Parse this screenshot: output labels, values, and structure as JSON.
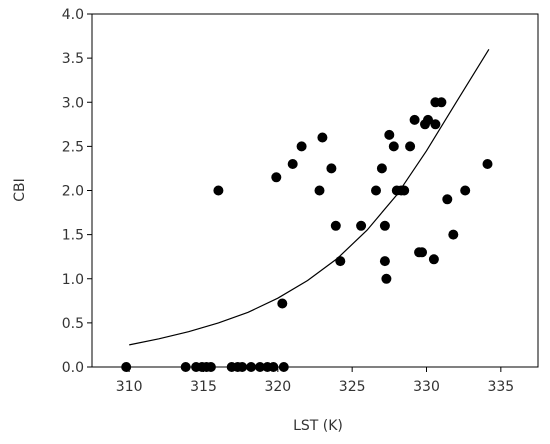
{
  "chart_data": {
    "type": "scatter",
    "xlabel": "LST (K)",
    "ylabel": "CBI",
    "xlim": [
      307.5,
      337.5
    ],
    "ylim": [
      0.0,
      4.0
    ],
    "x_ticks": [
      310,
      315,
      320,
      325,
      330,
      335
    ],
    "x_tick_labels": [
      "310",
      "315",
      "320",
      "325",
      "330",
      "335"
    ],
    "y_ticks": [
      0.0,
      0.5,
      1.0,
      1.5,
      2.0,
      2.5,
      3.0,
      3.5,
      4.0
    ],
    "y_tick_labels": [
      "0.0",
      "0.5",
      "1.0",
      "1.5",
      "2.0",
      "2.5",
      "3.0",
      "3.5",
      "4.0"
    ],
    "grid": false,
    "legend": "none",
    "marker_color": "#000000",
    "curve_color": "#000000",
    "series": [
      {
        "type": "scatter",
        "x": [
          309.8,
          313.8,
          314.5,
          314.9,
          315.2,
          315.5,
          316.9,
          317.3,
          317.6,
          318.2,
          318.8,
          319.3,
          319.7,
          320.4,
          316.0,
          319.9,
          320.3,
          321.0,
          321.6,
          322.8,
          323.0,
          323.6,
          323.9,
          324.2,
          325.6,
          326.6,
          327.0,
          327.2,
          327.2,
          327.3,
          327.5,
          327.8,
          328.0,
          328.3,
          328.5,
          328.9,
          329.2,
          329.5,
          329.7,
          329.9,
          330.1,
          330.5,
          330.6,
          330.6,
          331.0,
          331.4,
          331.8,
          332.6,
          334.1
        ],
        "y": [
          0.0,
          0.0,
          0.0,
          0.0,
          0.0,
          0.0,
          0.0,
          0.0,
          0.0,
          0.0,
          0.0,
          0.0,
          0.0,
          0.0,
          2.0,
          2.15,
          0.72,
          2.3,
          2.5,
          2.0,
          2.6,
          2.25,
          1.6,
          1.2,
          1.6,
          2.0,
          2.25,
          1.6,
          1.2,
          1.0,
          2.63,
          2.5,
          2.0,
          2.0,
          2.0,
          2.5,
          2.8,
          1.3,
          1.3,
          2.75,
          2.8,
          1.22,
          2.75,
          3.0,
          3.0,
          1.9,
          1.5,
          2.0,
          2.3
        ]
      },
      {
        "type": "line",
        "x": [
          310,
          312,
          314,
          316,
          318,
          320,
          322,
          324,
          326,
          328,
          330,
          332,
          334.2
        ],
        "y": [
          0.25,
          0.32,
          0.4,
          0.5,
          0.62,
          0.78,
          0.98,
          1.23,
          1.55,
          1.95,
          2.45,
          3.0,
          3.6
        ]
      }
    ]
  }
}
